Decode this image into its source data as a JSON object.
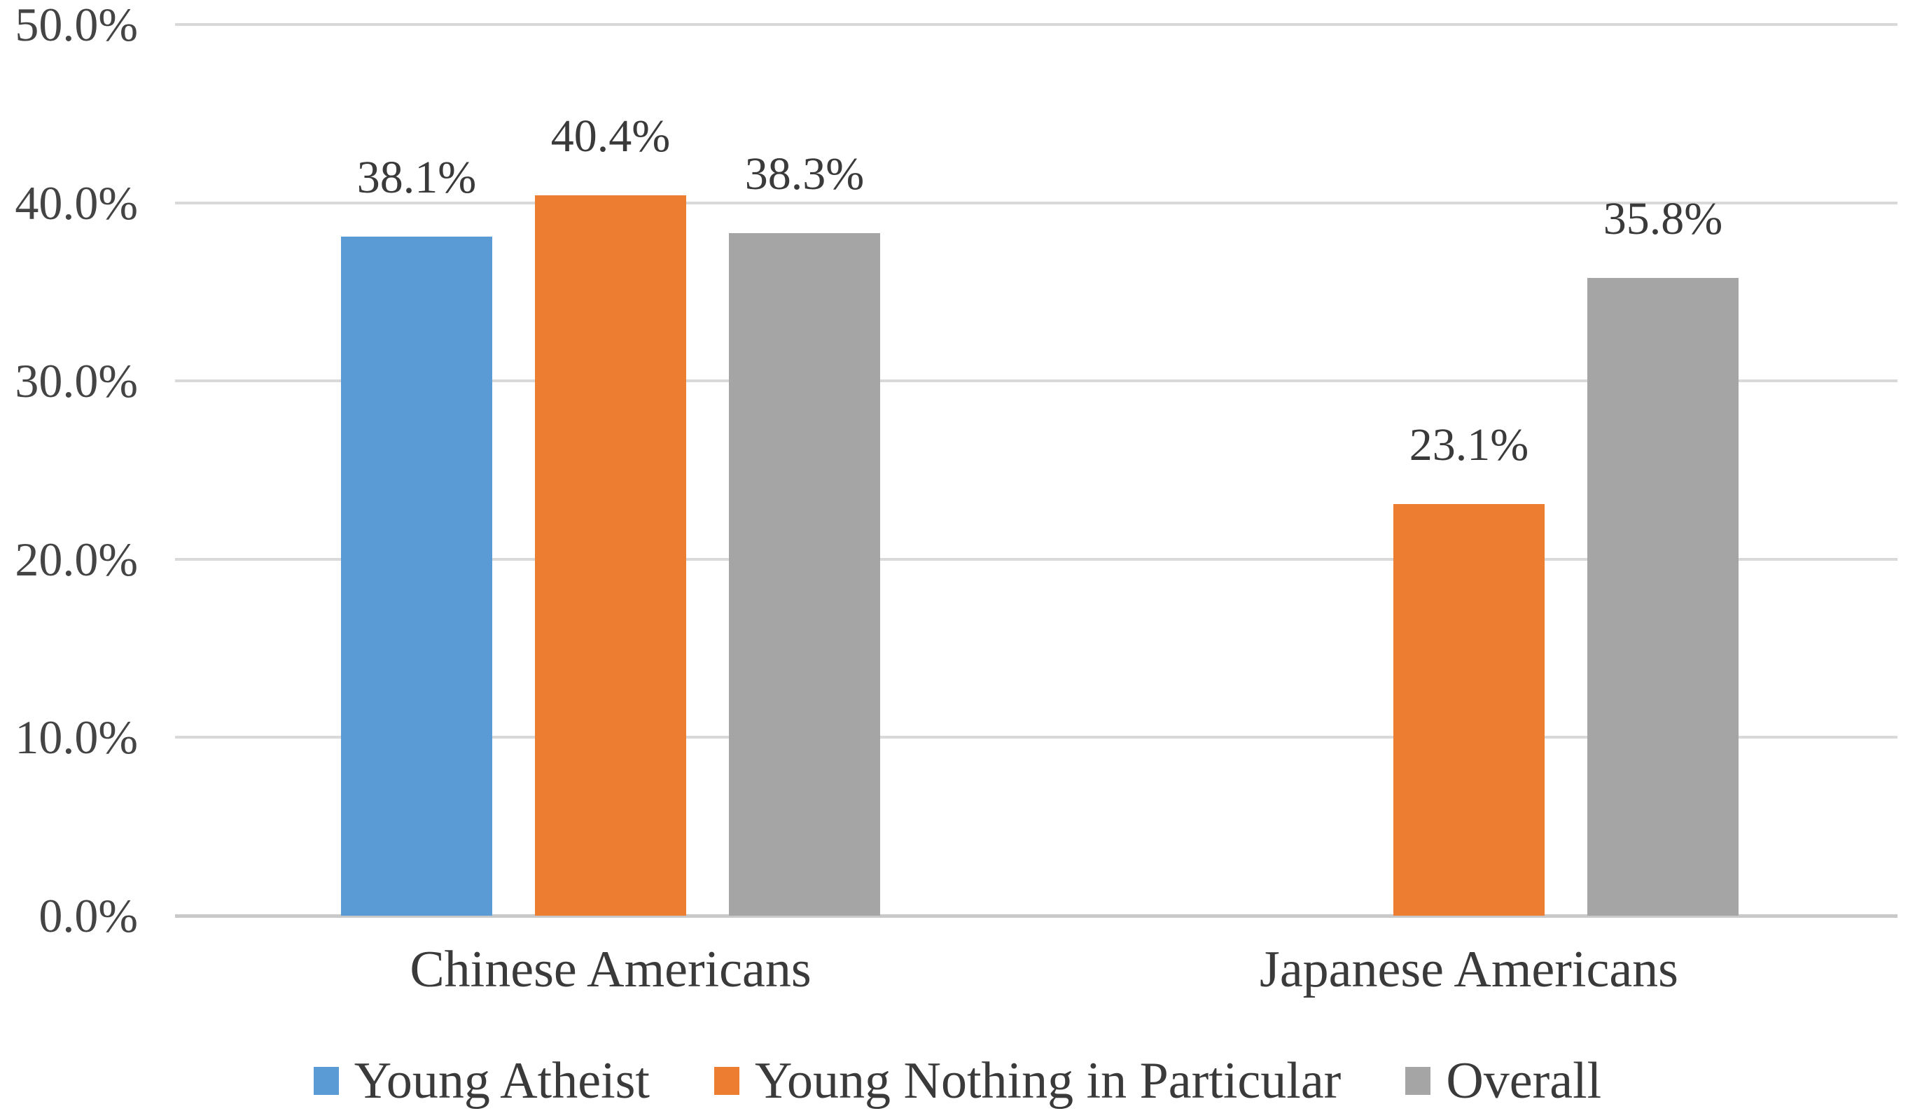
{
  "chart_data": {
    "type": "bar",
    "title": "",
    "categories": [
      "Chinese Americans",
      "Japanese Americans"
    ],
    "series": [
      {
        "name": "Young Atheist",
        "color": "#5B9BD5",
        "values": [
          38.1,
          null
        ],
        "labels": [
          "38.1%",
          null
        ]
      },
      {
        "name": "Young Nothing in Particular",
        "color": "#ED7D31",
        "values": [
          40.4,
          23.1
        ],
        "labels": [
          "40.4%",
          "23.1%"
        ]
      },
      {
        "name": "Overall",
        "color": "#A5A5A5",
        "values": [
          38.3,
          35.8
        ],
        "labels": [
          "38.3%",
          "35.8%"
        ]
      }
    ],
    "y_axis": {
      "min": 0,
      "max": 50,
      "step": 10,
      "tick_labels": [
        "0.0%",
        "10.0%",
        "20.0%",
        "30.0%",
        "40.0%",
        "50.0%"
      ]
    },
    "xlabel": "",
    "ylabel": "",
    "grid": true,
    "legend_position": "bottom",
    "colors": {
      "gridline": "#D9D9D9",
      "axis_line": "#C9C9C9",
      "text": "#3a3a3a",
      "background": "#FFFFFF"
    }
  }
}
